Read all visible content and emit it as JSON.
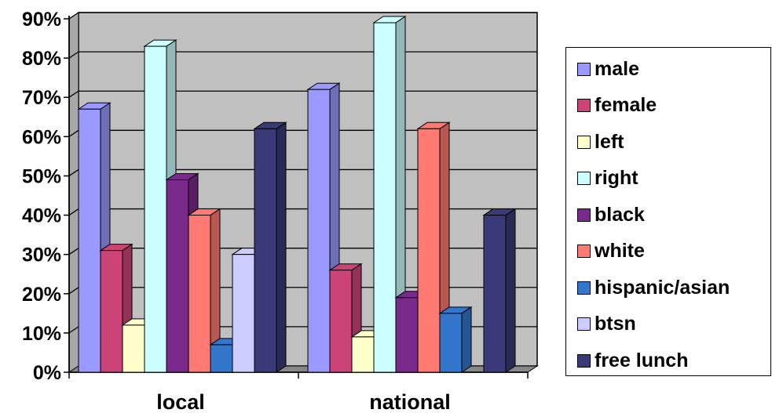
{
  "chart_data": {
    "type": "bar",
    "categories": [
      "local",
      "national"
    ],
    "yticks": [
      "0%",
      "10%",
      "20%",
      "30%",
      "40%",
      "50%",
      "60%",
      "70%",
      "80%",
      "90%"
    ],
    "ylim": [
      0,
      90
    ],
    "grid": true,
    "legend_position": "right",
    "series": [
      {
        "name": "male",
        "color": "#9999ff",
        "values": [
          67,
          72
        ]
      },
      {
        "name": "female",
        "color": "#cc4477",
        "values": [
          31,
          26
        ]
      },
      {
        "name": "left",
        "color": "#ffffcc",
        "values": [
          12,
          9
        ]
      },
      {
        "name": "right",
        "color": "#ccffff",
        "values": [
          83,
          89
        ]
      },
      {
        "name": "black",
        "color": "#7a2a8a",
        "values": [
          49,
          19
        ]
      },
      {
        "name": "white",
        "color": "#ff7a72",
        "values": [
          40,
          62
        ]
      },
      {
        "name": "hispanic/asian",
        "color": "#3377cc",
        "values": [
          7,
          15
        ]
      },
      {
        "name": "btsn",
        "color": "#ccccff",
        "values": [
          30,
          0
        ]
      },
      {
        "name": "free lunch",
        "color": "#3a3a78",
        "values": [
          62,
          40
        ]
      }
    ]
  }
}
